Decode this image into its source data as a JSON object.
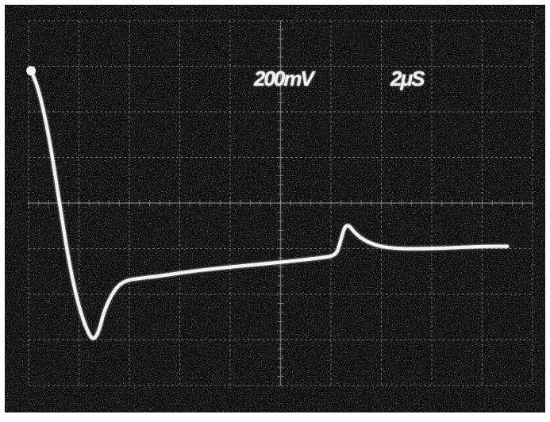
{
  "chart_data": {
    "type": "line",
    "title": "",
    "xlabel": "",
    "ylabel": "",
    "grid": true,
    "grid_divisions": {
      "x": 10,
      "y": 8
    },
    "settings": {
      "volts_per_div": "200mV",
      "time_per_div": "2μS"
    },
    "xlim": [
      0,
      20
    ],
    "ylim": [
      -0.8,
      0.8
    ],
    "x_unit": "μs",
    "y_unit": "V",
    "series": [
      {
        "values_x": [
          0.1,
          0.4,
          0.8,
          1.2,
          1.6,
          2.0,
          2.4,
          2.6,
          2.8,
          3.0,
          3.4,
          3.8,
          4.4,
          5.2,
          6.4,
          8.0,
          10.0,
          11.6,
          12.2,
          12.35,
          12.6,
          13.0,
          13.6,
          14.4,
          16.0,
          18.0,
          19.0
        ],
        "values_y": [
          0.58,
          0.5,
          0.3,
          0.02,
          -0.26,
          -0.46,
          -0.58,
          -0.6,
          -0.56,
          -0.47,
          -0.38,
          -0.34,
          -0.33,
          -0.32,
          -0.3,
          -0.28,
          -0.26,
          -0.24,
          -0.23,
          -0.18,
          -0.08,
          -0.14,
          -0.18,
          -0.2,
          -0.2,
          -0.19,
          -0.19
        ]
      }
    ]
  },
  "colors": {
    "screen": "#0a0a0a",
    "trace": "#f4f4f4",
    "grid": "#8f8f8f",
    "frame": "#ffffff"
  },
  "icons": {
    "trace_marker": "trace-start-dot-icon"
  }
}
